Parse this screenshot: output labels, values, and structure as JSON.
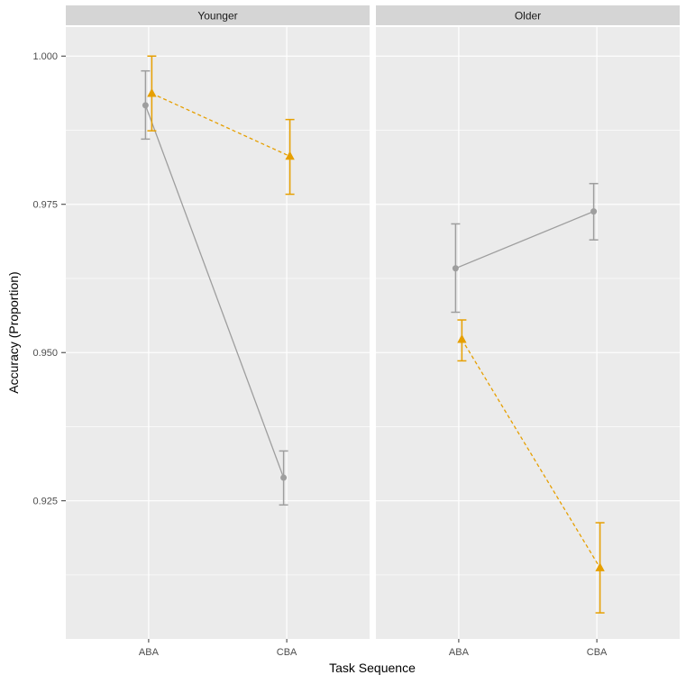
{
  "colors": {
    "background": "#FFFFFF",
    "panel_bg": "#EBEBEB",
    "strip_bg": "#D5D5D5",
    "gridline": "#FFFFFF",
    "tick_mark": "#333333",
    "tick_text": "#4D4D4D",
    "strip_text": "#1A1A1A",
    "axis_title_text": "#000000",
    "series_gray": "#9E9E9E",
    "series_orange": "#E69F00"
  },
  "chart_data": {
    "type": "line",
    "title": "",
    "xlabel": "Task Sequence",
    "ylabel": "Accuracy (Proportion)",
    "facets": [
      "Younger",
      "Older"
    ],
    "x_categories": [
      "ABA",
      "CBA"
    ],
    "y_ticks": [
      {
        "label": "1.000",
        "value": 1.0
      },
      {
        "label": "0.975",
        "value": 0.975
      },
      {
        "label": "0.950",
        "value": 0.95
      },
      {
        "label": "0.925",
        "value": 0.925
      }
    ],
    "y_minor_gridlines": [
      0.9875,
      0.9625,
      0.9375,
      0.9125
    ],
    "ylim": [
      0.9017,
      1.0049
    ],
    "grid": true,
    "legend_position": "none",
    "error_bars": "shown",
    "series": [
      {
        "facet": "Younger",
        "name": "gray-circle-solid",
        "color": "#9E9E9E",
        "marker": "circle",
        "line": "solid",
        "points": [
          {
            "x": "ABA",
            "y": 0.9917,
            "ymin": 0.986,
            "ymax": 0.9975
          },
          {
            "x": "CBA",
            "y": 0.9289,
            "ymin": 0.9243,
            "ymax": 0.9334
          }
        ]
      },
      {
        "facet": "Younger",
        "name": "orange-triangle-dashed",
        "color": "#E69F00",
        "marker": "triangle",
        "line": "dashed",
        "points": [
          {
            "x": "ABA",
            "y": 0.9937,
            "ymin": 0.9874,
            "ymax": 1.0
          },
          {
            "x": "CBA",
            "y": 0.9831,
            "ymin": 0.9767,
            "ymax": 0.9893
          }
        ]
      },
      {
        "facet": "Older",
        "name": "gray-circle-solid",
        "color": "#9E9E9E",
        "marker": "circle",
        "line": "solid",
        "points": [
          {
            "x": "ABA",
            "y": 0.9642,
            "ymin": 0.9568,
            "ymax": 0.9717
          },
          {
            "x": "CBA",
            "y": 0.9738,
            "ymin": 0.969,
            "ymax": 0.9785
          }
        ]
      },
      {
        "facet": "Older",
        "name": "orange-triangle-dashed",
        "color": "#E69F00",
        "marker": "triangle",
        "line": "dashed",
        "points": [
          {
            "x": "ABA",
            "y": 0.9522,
            "ymin": 0.9486,
            "ymax": 0.9555
          },
          {
            "x": "CBA",
            "y": 0.9137,
            "ymin": 0.9061,
            "ymax": 0.9213
          }
        ]
      }
    ]
  }
}
